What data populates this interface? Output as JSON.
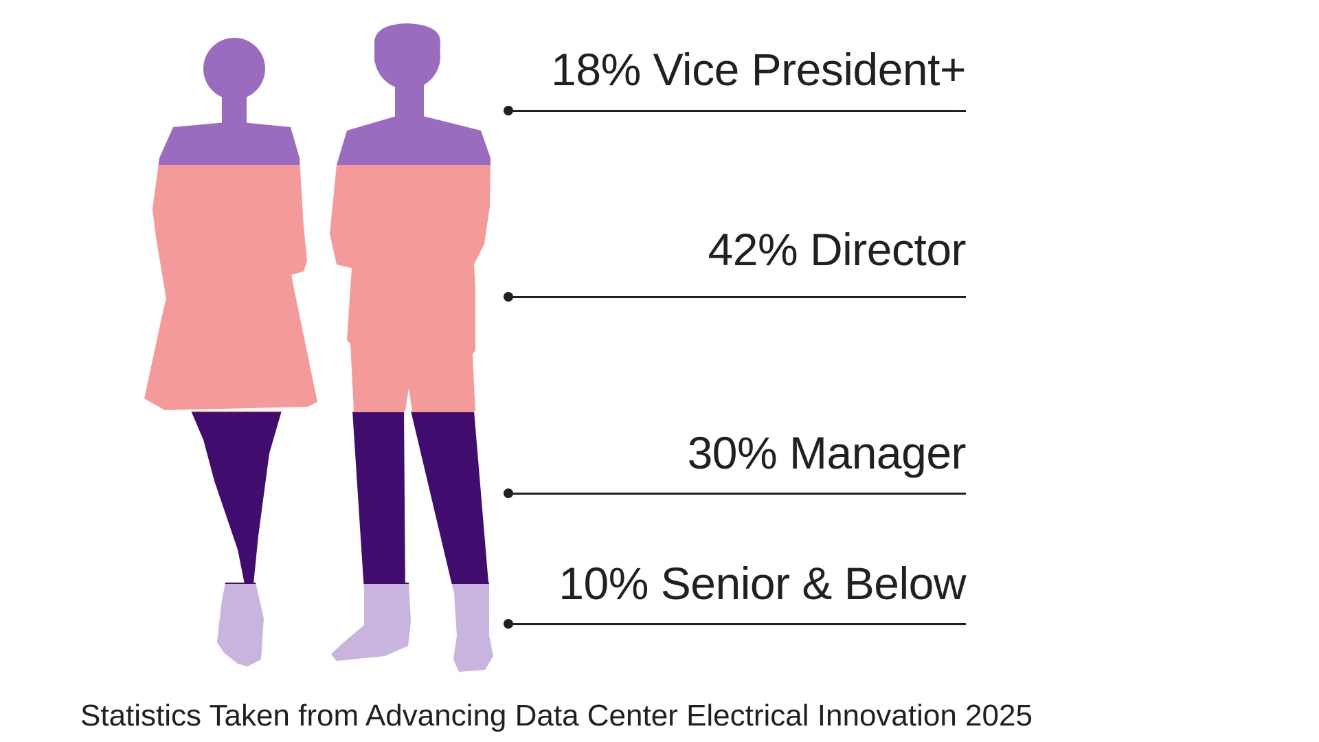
{
  "chart_data": {
    "type": "pictogram",
    "unit": "%",
    "tiers": [
      {
        "value": 18,
        "label": "Vice President+",
        "color": "#9a6cc0"
      },
      {
        "value": 42,
        "label": "Director",
        "color": "#f49a9b"
      },
      {
        "value": 30,
        "label": "Manager",
        "color": "#400d6e"
      },
      {
        "value": 10,
        "label": "Senior & Below",
        "color": "#c9b4df"
      }
    ]
  },
  "labels": {
    "vp": "18% Vice President+",
    "director": "42% Director",
    "manager": "30% Manager",
    "senior": "10% Senior & Below"
  },
  "source": "Statistics Taken from Advancing Data Center Electrical Innovation 2025"
}
